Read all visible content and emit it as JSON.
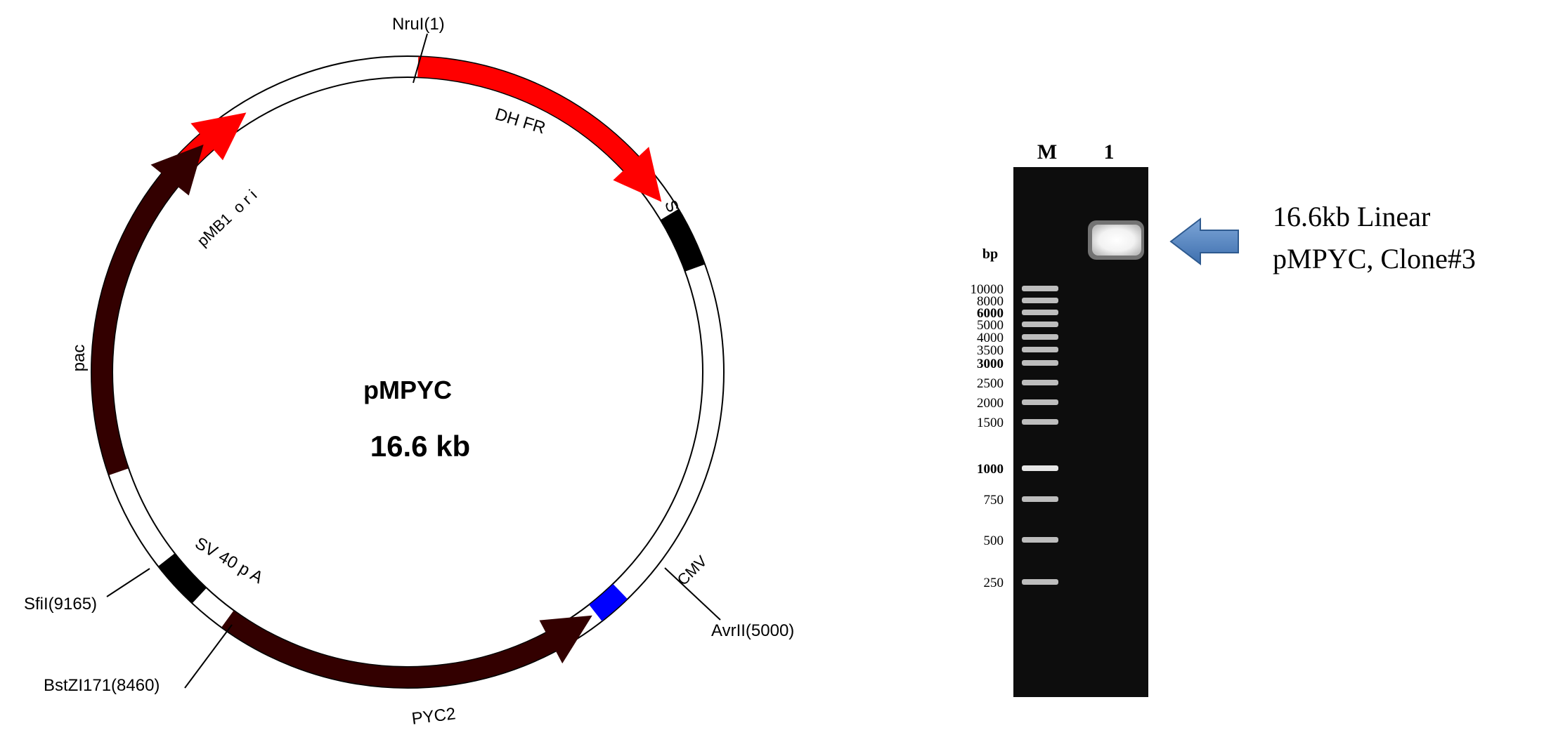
{
  "plasmid_map": {
    "name": "pMPYC",
    "size": "16.6 kb",
    "features": [
      {
        "label": "DH FR",
        "color": "#ff0000"
      },
      {
        "label": "pMB1  o r i",
        "color": "#ff0000"
      },
      {
        "label": "SV40pA",
        "color": "#000000"
      },
      {
        "label": "CMV",
        "color": "#0000ff"
      },
      {
        "label": "PYC2",
        "color": "#330000"
      },
      {
        "label": "SV 40 p A",
        "color": "#000000"
      },
      {
        "label": "pac",
        "color": "#330000"
      }
    ],
    "sites": [
      {
        "label": "NruI(1)"
      },
      {
        "label": "AvrII(5000)"
      },
      {
        "label": "SfiI(9165)"
      },
      {
        "label": "BstZI171(8460)"
      }
    ]
  },
  "gel": {
    "lanes": [
      "M",
      "1"
    ],
    "unit_label": "bp",
    "ladder": [
      {
        "label": "10000",
        "bold": false
      },
      {
        "label": "8000",
        "bold": false
      },
      {
        "label": "6000",
        "bold": true
      },
      {
        "label": "5000",
        "bold": false
      },
      {
        "label": "4000",
        "bold": false
      },
      {
        "label": "3500",
        "bold": false
      },
      {
        "label": "3000",
        "bold": true
      },
      {
        "label": "2500",
        "bold": false
      },
      {
        "label": "2000",
        "bold": false
      },
      {
        "label": "1500",
        "bold": false
      },
      {
        "label": "1000",
        "bold": true
      },
      {
        "label": "750",
        "bold": false
      },
      {
        "label": "500",
        "bold": false
      },
      {
        "label": "250",
        "bold": false
      }
    ],
    "annotation": {
      "line1": "16.6kb Linear",
      "line2": "pMPYC, Clone#3",
      "arrow_color": "#4f81bd"
    }
  }
}
